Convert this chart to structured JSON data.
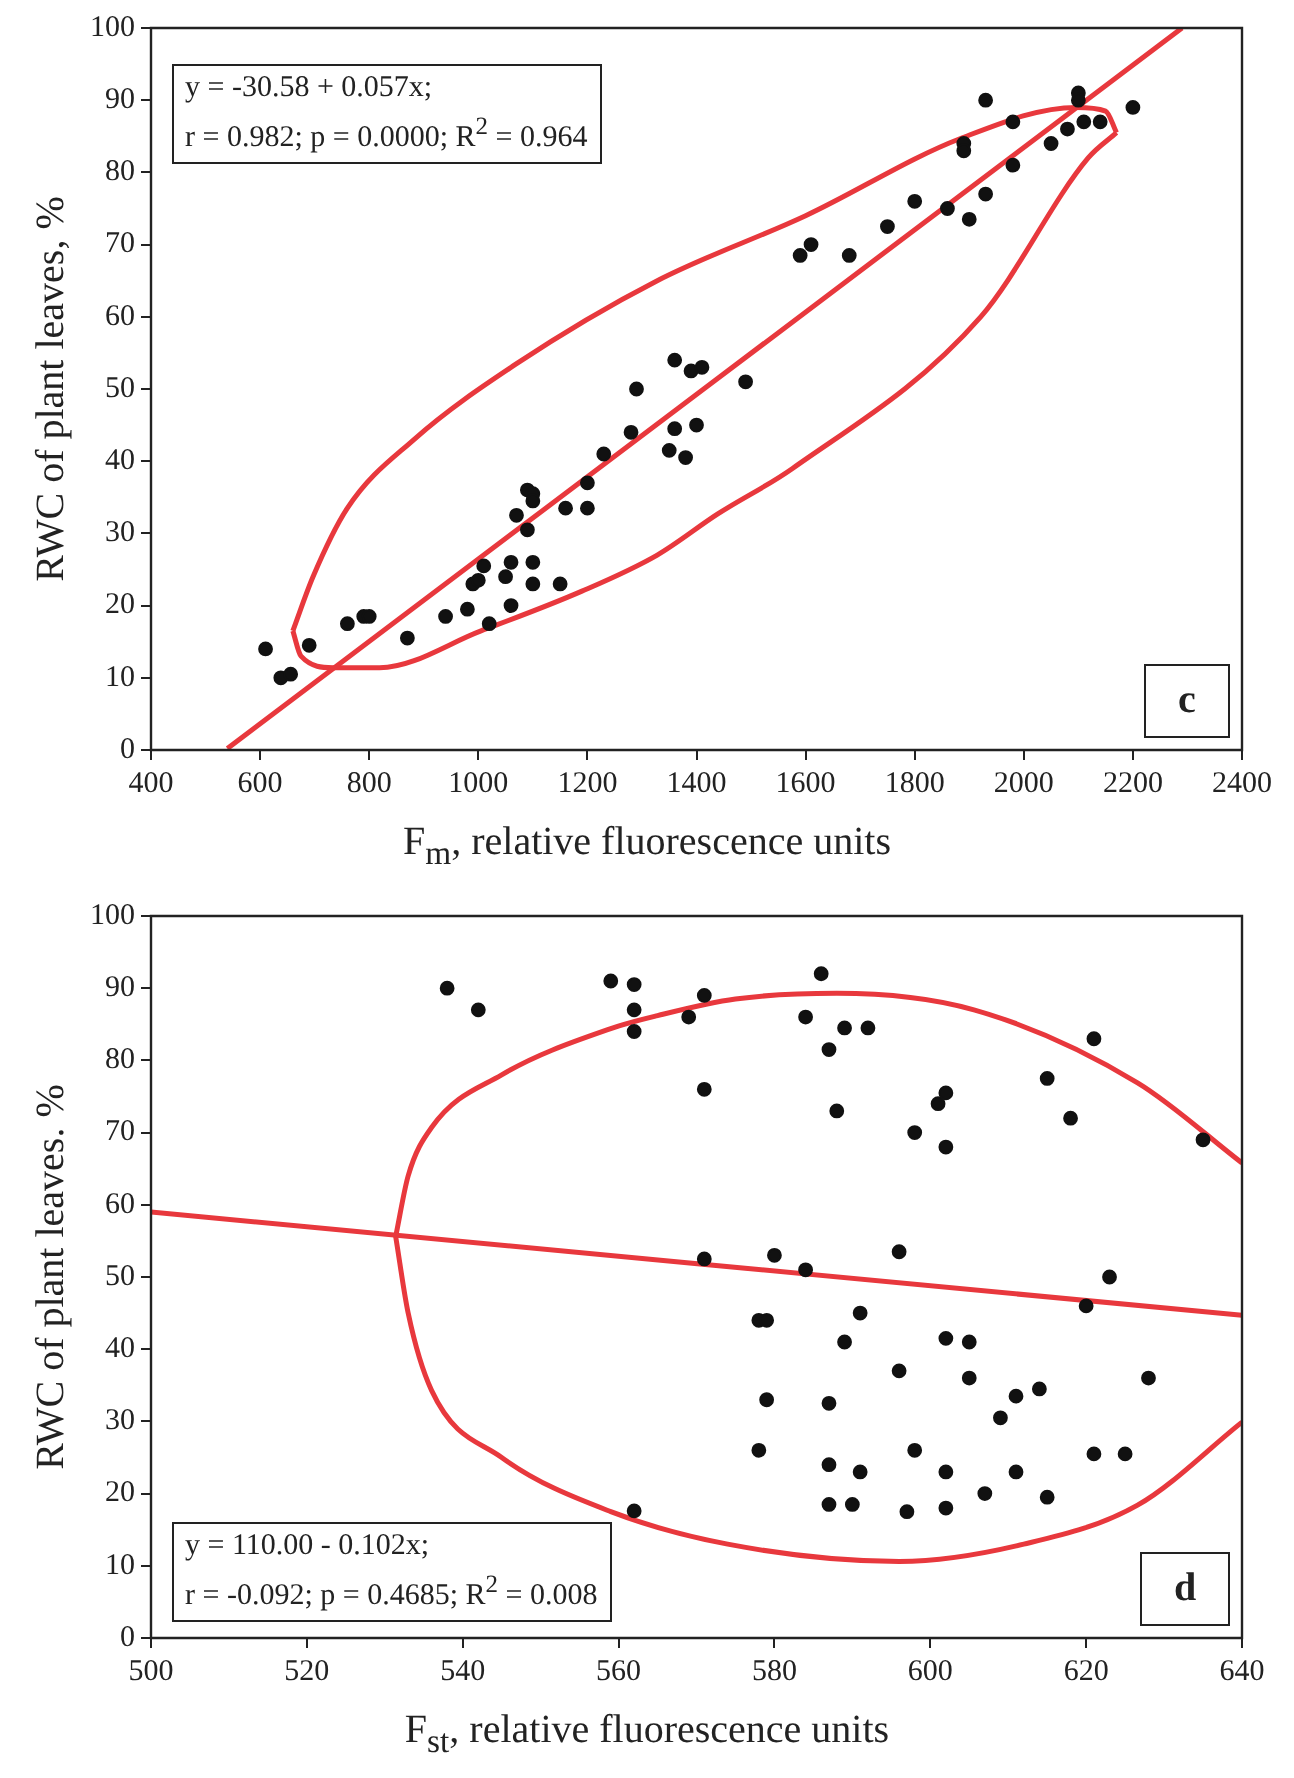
{
  "chart_data": [
    {
      "type": "scatter",
      "xlabel": "F$_{m}$, relative fluorescence units",
      "ylabel": "RWC of plant leaves, %",
      "xlim": [
        400,
        2400
      ],
      "xticks": [
        400,
        600,
        800,
        1000,
        1200,
        1400,
        1600,
        1800,
        2000,
        2200,
        2400
      ],
      "ylim": [
        0,
        100
      ],
      "yticks": [
        0,
        10,
        20,
        30,
        40,
        50,
        60,
        70,
        80,
        90,
        100
      ],
      "grid": false,
      "legend": false,
      "marker": "circle",
      "annotations": [
        "y = -30.58 + 0.057x;",
        "r = 0.982; p = 0.0000; R$^{2}$ = 0.964",
        "c"
      ],
      "series": [
        {
          "color": "#111111",
          "x": [
            610,
            638,
            656,
            690,
            760,
            790,
            800,
            870,
            940,
            980,
            990,
            1000,
            1010,
            1020,
            1050,
            1060,
            1060,
            1070,
            1090,
            1090,
            1100,
            1100,
            1100,
            1100,
            1150,
            1160,
            1200,
            1200,
            1230,
            1280,
            1290,
            1350,
            1360,
            1360,
            1390,
            1380,
            1400,
            1410,
            1490,
            1590,
            1610,
            1680,
            1750,
            1800,
            1860,
            1890,
            1890,
            1900,
            1930,
            1930,
            1980,
            1980,
            2050,
            2080,
            2100,
            2100,
            2110,
            2140,
            2200
          ],
          "values": [
            14,
            10,
            10.5,
            14.5,
            17.5,
            18.5,
            18.5,
            15.5,
            18.5,
            19.5,
            23,
            23.5,
            25.5,
            17.5,
            24,
            26,
            20,
            32.5,
            30.5,
            36,
            35.5,
            34.5,
            26,
            23,
            23,
            33.5,
            33.5,
            37,
            41,
            44,
            50,
            41.5,
            54,
            44.5,
            52.5,
            40.5,
            45,
            53,
            51,
            68.5,
            70,
            68.5,
            72.5,
            76,
            75,
            84,
            83,
            73.5,
            77,
            90,
            81,
            87,
            84,
            86,
            91,
            90,
            87,
            87,
            89
          ]
        },
        {
          "type": "line",
          "marker": "none",
          "color": "#e8383d",
          "x": [
            540,
            2290
          ],
          "values": [
            0.2,
            100
          ]
        },
        {
          "type": "line",
          "marker": "none",
          "color": "#e8383d",
          "x": [
            660,
            697,
            760,
            882,
            1068,
            1328,
            1600,
            1884,
            2096,
            2150,
            2170
          ],
          "values": [
            16.5,
            24,
            33.5,
            43,
            53.4,
            65,
            74,
            84.7,
            89,
            88.5,
            85.5
          ]
        },
        {
          "type": "line",
          "marker": "none",
          "color": "#e8383d",
          "x": [
            660,
            675,
            734,
            819,
            1005,
            1190,
            1328,
            1439,
            1576,
            1921,
            2118,
            2170
          ],
          "values": [
            16.5,
            13,
            11.4,
            11.4,
            16.5,
            22,
            27,
            32.7,
            39,
            60,
            82,
            85.5
          ]
        }
      ]
    },
    {
      "type": "scatter",
      "xlabel": "F$_{st}$, relative fluorescence units",
      "ylabel": "RWC of plant leaves. %",
      "xlim": [
        500,
        640
      ],
      "xticks": [
        500,
        520,
        540,
        560,
        580,
        600,
        620,
        640
      ],
      "ylim": [
        0,
        100
      ],
      "yticks": [
        0,
        10,
        20,
        30,
        40,
        50,
        60,
        70,
        80,
        90,
        100
      ],
      "grid": false,
      "legend": false,
      "marker": "circle",
      "annotations": [
        "y = 110.00 - 0.102x;",
        "r = -0.092; p = 0.4685; R$^{2}$ = 0.008",
        "d"
      ],
      "series": [
        {
          "color": "#111111",
          "x": [
            538,
            542,
            559,
            562,
            562,
            562,
            569,
            571,
            571,
            571,
            562,
            586,
            584,
            589,
            592,
            587,
            588,
            598,
            601,
            602,
            602,
            615,
            618,
            621,
            635,
            580,
            584,
            596,
            623,
            620,
            578,
            579,
            591,
            589,
            602,
            605,
            596,
            605,
            628,
            579,
            587,
            614,
            611,
            609,
            578,
            598,
            621,
            625,
            587,
            591,
            602,
            611,
            607,
            615,
            587,
            590,
            597,
            602
          ],
          "values": [
            90,
            87,
            91,
            90.5,
            87,
            84,
            86,
            89,
            76,
            52.5,
            17.6,
            92,
            86,
            84.5,
            84.5,
            81.5,
            73,
            70,
            74,
            75.5,
            68,
            77.5,
            72,
            83,
            69,
            53,
            51,
            53.5,
            50,
            46,
            44,
            44,
            45,
            41,
            41.5,
            41,
            37,
            36,
            36,
            33,
            32.5,
            34.5,
            33.5,
            30.5,
            26,
            26,
            25.5,
            25.5,
            24,
            23,
            23,
            23,
            20,
            19.5,
            18.5,
            18.5,
            17.5,
            18
          ]
        },
        {
          "type": "line",
          "marker": "none",
          "color": "#e8383d",
          "x": [
            500,
            640
          ],
          "values": [
            59,
            44.7
          ]
        },
        {
          "type": "line",
          "marker": "none",
          "color": "#e8383d",
          "x": [
            531.4,
            533,
            536,
            545,
            559,
            565,
            575,
            588,
            605.6,
            626.6,
            640
          ],
          "values": [
            55.6,
            64,
            70.7,
            78,
            84.4,
            86.2,
            88.5,
            89.3,
            87,
            76.9,
            65.8
          ]
        },
        {
          "type": "line",
          "marker": "none",
          "color": "#e8383d",
          "x": [
            531.4,
            533,
            536,
            545,
            559,
            574,
            596,
            612,
            626.6,
            640
          ],
          "values": [
            55.6,
            45,
            34.3,
            25,
            17.5,
            13,
            10.6,
            13,
            18.4,
            29.9
          ]
        }
      ]
    }
  ]
}
